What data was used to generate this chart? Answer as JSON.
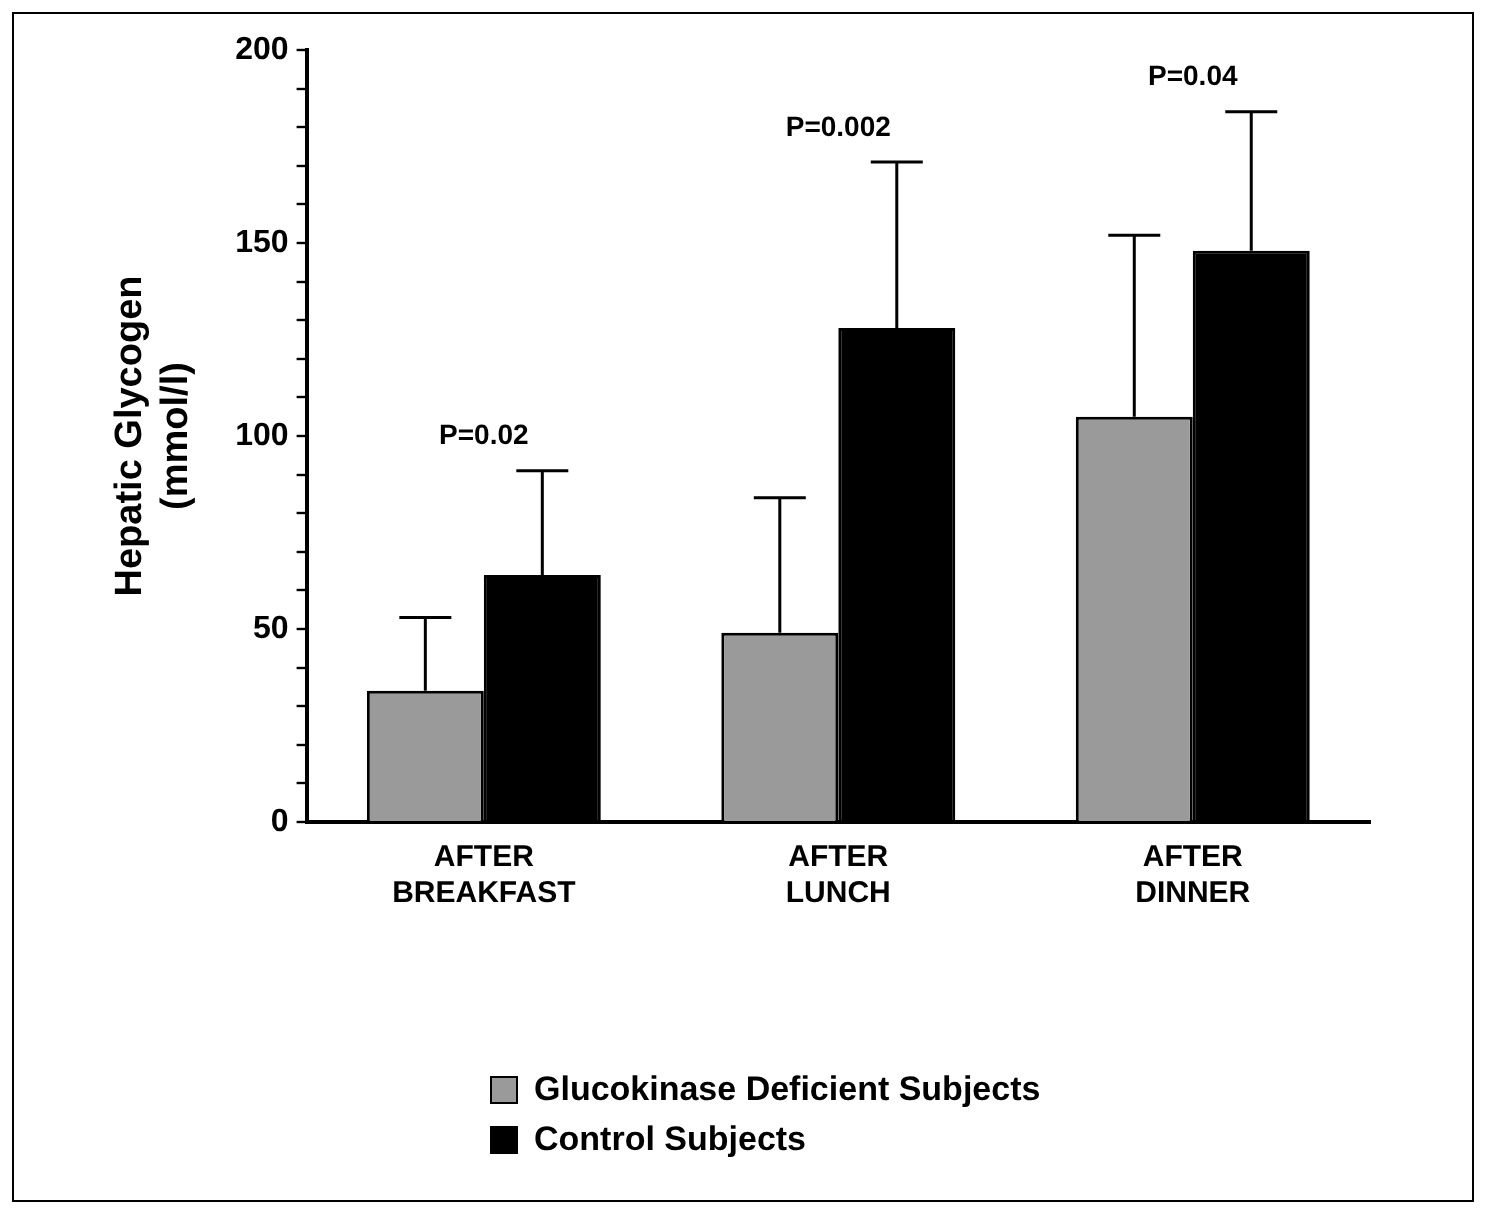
{
  "chart_data": {
    "type": "bar",
    "ylabel": "Hepatic Glycogen (mmol/l)",
    "categories": [
      "AFTER BREAKFAST",
      "AFTER LUNCH",
      "AFTER DINNER"
    ],
    "series": [
      {
        "name": "Glucokinase Deficient Subjects",
        "color": "#9a9a9a",
        "values": [
          34,
          49,
          105
        ],
        "errors": [
          [
            34,
            53
          ],
          [
            49,
            84
          ],
          [
            105,
            152
          ]
        ]
      },
      {
        "name": "Control Subjects",
        "color": "#000000",
        "values": [
          64,
          128,
          148
        ],
        "errors": [
          [
            64,
            91
          ],
          [
            128,
            171
          ],
          [
            148,
            184
          ]
        ]
      }
    ],
    "ylim": [
      0,
      200
    ],
    "yticks": [
      0,
      {
        "value": 10,
        "label": null
      },
      {
        "value": 20,
        "label": null
      },
      {
        "value": 30,
        "label": null
      },
      {
        "value": 40,
        "label": null
      },
      50,
      {
        "value": 60,
        "label": null
      },
      {
        "value": 70,
        "label": null
      },
      {
        "value": 80,
        "label": null
      },
      {
        "value": 90,
        "label": null
      },
      100,
      {
        "value": 110,
        "label": null
      },
      {
        "value": 120,
        "label": null
      },
      {
        "value": 130,
        "label": null
      },
      {
        "value": 140,
        "label": null
      },
      150,
      {
        "value": 160,
        "label": null
      },
      {
        "value": 170,
        "label": null
      },
      {
        "value": 180,
        "label": null
      },
      {
        "value": 190,
        "label": null
      },
      200
    ],
    "annotations": [
      "P=0.02",
      "P=0.002",
      "P=0.04"
    ],
    "grid": false,
    "legend": "bottom"
  }
}
